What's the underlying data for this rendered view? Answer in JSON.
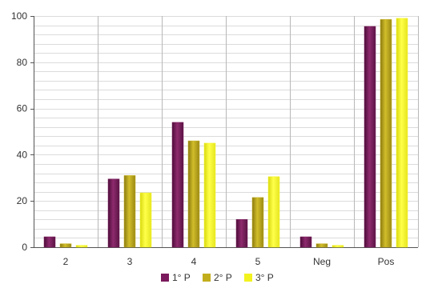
{
  "chart_data": {
    "type": "bar",
    "categories": [
      "2",
      "3",
      "4",
      "5",
      "Neg",
      "Pos"
    ],
    "series": [
      {
        "name": "1° P",
        "color": "#7b1a5c",
        "values": [
          4.5,
          29.5,
          54,
          12,
          4.5,
          95.5
        ]
      },
      {
        "name": "2° P",
        "color": "#c2ae1c",
        "values": [
          1.5,
          31,
          46,
          21.5,
          1.5,
          98.5
        ]
      },
      {
        "name": "3° P",
        "color": "#f2f21f",
        "values": [
          0.8,
          23.5,
          45,
          30.5,
          0.8,
          99
        ]
      }
    ],
    "ylim": [
      0,
      100
    ],
    "yticks": [
      0,
      20,
      40,
      60,
      80,
      100
    ],
    "title": "",
    "xlabel": "",
    "ylabel": "",
    "grid": true,
    "legend": "bottom-center"
  }
}
